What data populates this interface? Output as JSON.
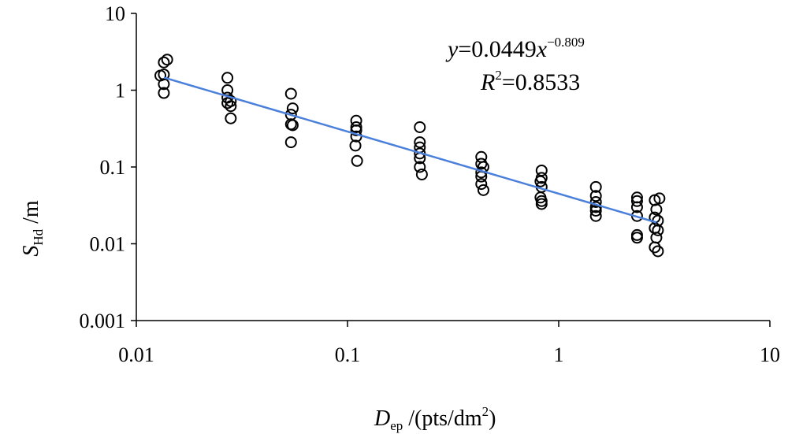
{
  "chart_data": {
    "type": "scatter",
    "x_scale": "log",
    "y_scale": "log",
    "xlim": [
      0.01,
      10
    ],
    "ylim": [
      0.001,
      10
    ],
    "x_ticks": [
      "0.01",
      "0.1",
      "1",
      "10"
    ],
    "y_ticks": [
      "0.001",
      "0.01",
      "0.1",
      "1",
      "10"
    ],
    "xlabel": {
      "main": "D",
      "sub": "ep",
      "rest": " /(pts/dm",
      "sup": "2",
      "end": ")"
    },
    "ylabel": {
      "main": "S",
      "sub": "Hd",
      "rest": " /m"
    },
    "grid": false,
    "legend": "none",
    "equation": {
      "y": "y",
      "eq1": "=0.0449",
      "x": "x",
      "exp": "−0.809"
    },
    "r2": {
      "R": "R",
      "sup": "2",
      "rest": "=0.8533"
    },
    "trendline": {
      "a": 0.0449,
      "b": -0.809,
      "x_range": [
        0.0135,
        2.9
      ],
      "color": "#4a7fdb"
    },
    "series": [
      {
        "marker": "open-circle",
        "points": [
          [
            0.013,
            1.55
          ],
          [
            0.0135,
            1.6
          ],
          [
            0.0135,
            2.3
          ],
          [
            0.014,
            2.5
          ],
          [
            0.0135,
            1.2
          ],
          [
            0.0135,
            0.92
          ],
          [
            0.027,
            1.45
          ],
          [
            0.027,
            1.0
          ],
          [
            0.027,
            0.8
          ],
          [
            0.027,
            0.68
          ],
          [
            0.028,
            0.62
          ],
          [
            0.028,
            0.72
          ],
          [
            0.028,
            0.43
          ],
          [
            0.054,
            0.9
          ],
          [
            0.055,
            0.58
          ],
          [
            0.054,
            0.48
          ],
          [
            0.054,
            0.36
          ],
          [
            0.055,
            0.35
          ],
          [
            0.054,
            0.21
          ],
          [
            0.11,
            0.4
          ],
          [
            0.11,
            0.33
          ],
          [
            0.11,
            0.3
          ],
          [
            0.11,
            0.25
          ],
          [
            0.109,
            0.19
          ],
          [
            0.111,
            0.12
          ],
          [
            0.22,
            0.33
          ],
          [
            0.22,
            0.21
          ],
          [
            0.22,
            0.18
          ],
          [
            0.22,
            0.15
          ],
          [
            0.22,
            0.13
          ],
          [
            0.22,
            0.1
          ],
          [
            0.225,
            0.08
          ],
          [
            0.43,
            0.135
          ],
          [
            0.43,
            0.11
          ],
          [
            0.44,
            0.1
          ],
          [
            0.43,
            0.085
          ],
          [
            0.43,
            0.075
          ],
          [
            0.43,
            0.06
          ],
          [
            0.44,
            0.05
          ],
          [
            0.83,
            0.09
          ],
          [
            0.83,
            0.072
          ],
          [
            0.82,
            0.065
          ],
          [
            0.83,
            0.055
          ],
          [
            0.82,
            0.04
          ],
          [
            0.83,
            0.036
          ],
          [
            0.83,
            0.033
          ],
          [
            1.5,
            0.055
          ],
          [
            1.5,
            0.042
          ],
          [
            1.5,
            0.035
          ],
          [
            1.5,
            0.03
          ],
          [
            1.5,
            0.027
          ],
          [
            1.5,
            0.023
          ],
          [
            2.35,
            0.04
          ],
          [
            2.35,
            0.036
          ],
          [
            2.35,
            0.03
          ],
          [
            2.35,
            0.023
          ],
          [
            2.35,
            0.013
          ],
          [
            2.35,
            0.012
          ],
          [
            2.85,
            0.037
          ],
          [
            2.9,
            0.028
          ],
          [
            2.85,
            0.022
          ],
          [
            2.95,
            0.02
          ],
          [
            2.85,
            0.016
          ],
          [
            2.95,
            0.015
          ],
          [
            2.9,
            0.012
          ],
          [
            2.85,
            0.009
          ],
          [
            2.95,
            0.008
          ],
          [
            3.0,
            0.039
          ]
        ]
      }
    ]
  }
}
